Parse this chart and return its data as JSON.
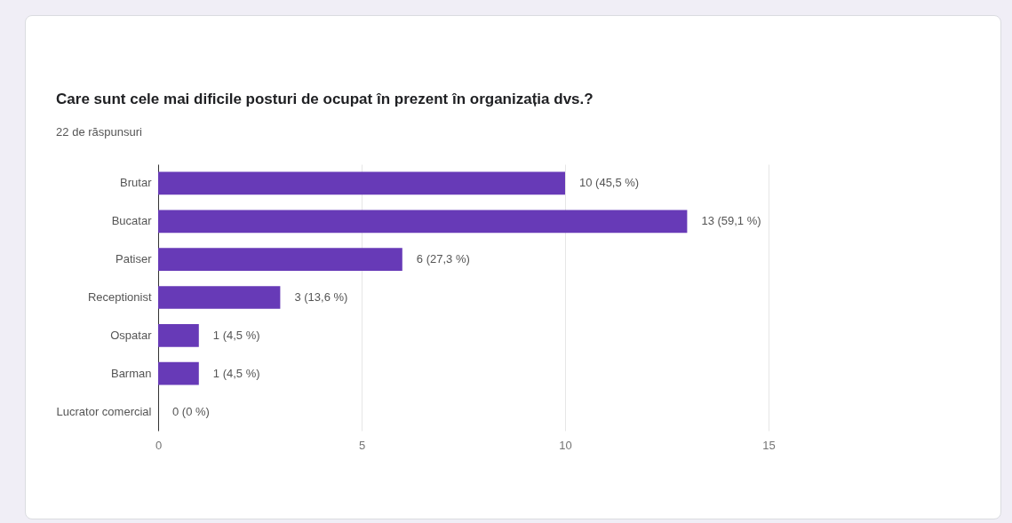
{
  "chart_data": {
    "type": "bar",
    "orientation": "horizontal",
    "title": "Care sunt cele mai dificile posturi de ocupat în prezent în organizația dvs.?",
    "subtitle": "22 de răspunsuri",
    "categories": [
      "Brutar",
      "Bucatar",
      "Patiser",
      "Receptionist",
      "Ospatar",
      "Barman",
      "Lucrator comercial"
    ],
    "values": [
      10,
      13,
      6,
      3,
      1,
      1,
      0
    ],
    "value_labels": [
      "10 (45,5 %)",
      "13 (59,1 %)",
      "6 (27,3 %)",
      "3 (13,6 %)",
      "1 (4,5 %)",
      "1 (4,5 %)",
      "0 (0 %)"
    ],
    "color": "#673ab7",
    "xlim": [
      0,
      15
    ],
    "xticks": [
      0,
      5,
      10,
      15
    ],
    "grid": "x"
  }
}
